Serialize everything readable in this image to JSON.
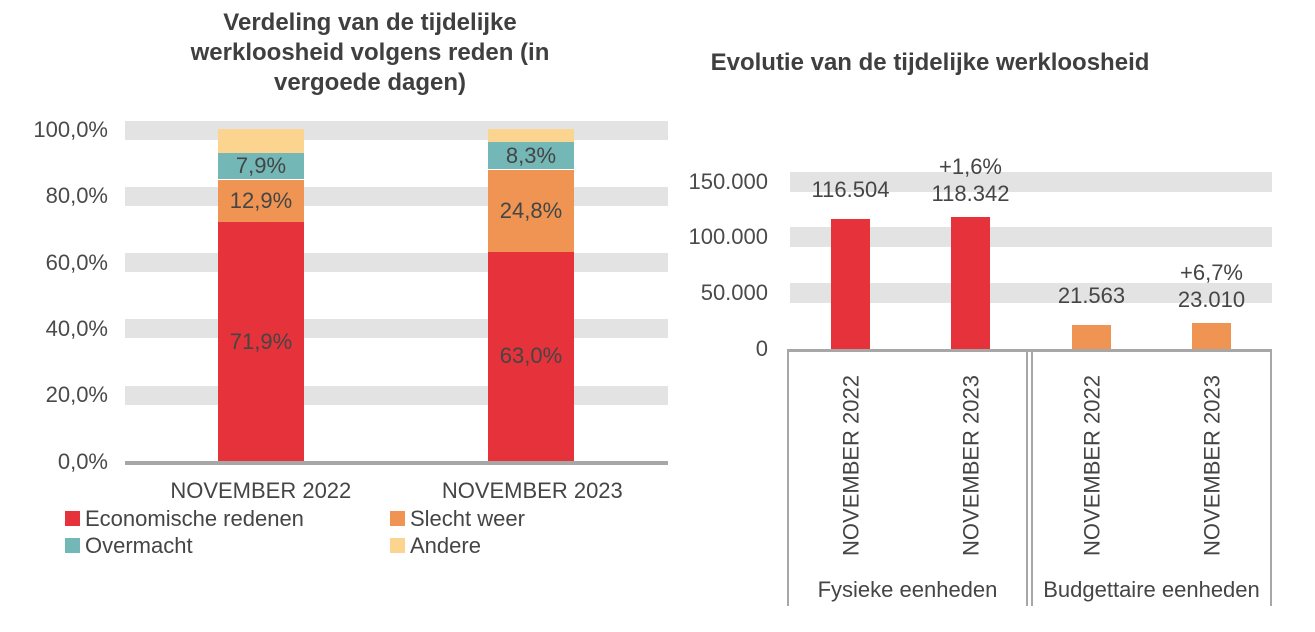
{
  "colors": {
    "red": "#E5323B",
    "orange": "#EF9452",
    "teal": "#74B7B7",
    "yellow": "#FBD590",
    "band_gray": "#E3E3E3",
    "axis_gray": "#A7A7A7",
    "text": "#454545",
    "title_text": "#3F3F3F"
  },
  "chart_data": [
    {
      "id": "verdeling",
      "type": "bar",
      "stacked": true,
      "title": "Verdeling van de tijdelijke werkloosheid volgens reden (in vergoede dagen)",
      "categories": [
        "NOVEMBER 2022",
        "NOVEMBER 2023"
      ],
      "series": [
        {
          "name": "Economische redenen",
          "color_key": "red",
          "values": [
            71.9,
            63.0
          ],
          "labels": [
            "71,9%",
            "63,0%"
          ]
        },
        {
          "name": "Slecht weer",
          "color_key": "orange",
          "values": [
            12.9,
            24.8
          ],
          "labels": [
            "12,9%",
            "24,8%"
          ]
        },
        {
          "name": "Overmacht",
          "color_key": "teal",
          "values": [
            7.9,
            8.3
          ],
          "labels": [
            "7,9%",
            "8,3%"
          ]
        },
        {
          "name": "Andere",
          "color_key": "yellow",
          "values": [
            7.3,
            3.9
          ],
          "labels": [
            "",
            ""
          ]
        }
      ],
      "ylabel_ticks": [
        "0,0%",
        "20,0%",
        "40,0%",
        "60,0%",
        "80,0%",
        "100,0%"
      ],
      "ylim": [
        0,
        100
      ],
      "grid": "horizontal-bands",
      "legend_position": "bottom"
    },
    {
      "id": "evolutie",
      "type": "bar",
      "stacked": false,
      "title": "Evolutie van de tijdelijke werkloosheid",
      "ylabel_ticks": [
        "0",
        "50.000",
        "100.000",
        "150.000"
      ],
      "ylim": [
        0,
        150000
      ],
      "grid": "horizontal-bands",
      "groups": [
        {
          "label": "Fysieke eenheden",
          "bars": [
            {
              "category": "NOVEMBER 2022",
              "value": 116504,
              "value_label": "116.504",
              "delta_label": "",
              "color_key": "red"
            },
            {
              "category": "NOVEMBER 2023",
              "value": 118342,
              "value_label": "118.342",
              "delta_label": "+1,6%",
              "color_key": "red"
            }
          ]
        },
        {
          "label": "Budgettaire eenheden",
          "bars": [
            {
              "category": "NOVEMBER 2022",
              "value": 21563,
              "value_label": "21.563",
              "delta_label": "",
              "color_key": "orange"
            },
            {
              "category": "NOVEMBER 2023",
              "value": 23010,
              "value_label": "23.010",
              "delta_label": "+6,7%",
              "color_key": "orange"
            }
          ]
        }
      ]
    }
  ]
}
